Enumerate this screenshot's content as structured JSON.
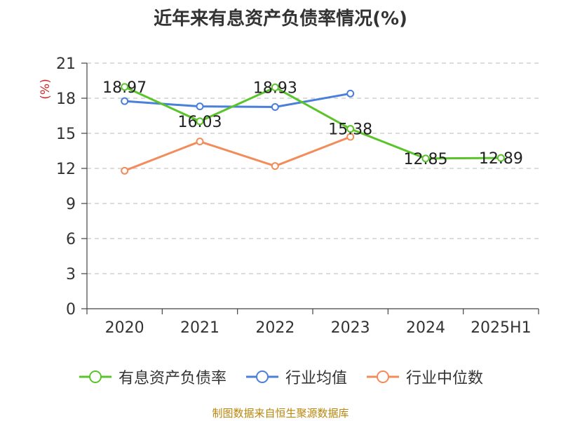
{
  "title": "近年来有息资产负债率情况(%)",
  "source": "制图数据来自恒生聚源数据库",
  "colors": {
    "series_1": "#5ac42a",
    "series_2": "#4a7fdb",
    "series_3": "#f28c5a",
    "grid": "#c8c8c8",
    "axis": "#444444",
    "unit": "#cc2a2a"
  },
  "chart_data": {
    "type": "line",
    "title": "近年来有息资产负债率情况(%)",
    "ylabel": "(%)",
    "xlabel": "",
    "categories": [
      "2020",
      "2021",
      "2022",
      "2023",
      "2024",
      "2025H1"
    ],
    "ylim": [
      0,
      21
    ],
    "yticks": [
      0,
      3,
      6,
      9,
      12,
      15,
      18,
      21
    ],
    "grid": true,
    "legend_position": "bottom",
    "series": [
      {
        "name": "有息资产负债率",
        "values": [
          18.97,
          16.03,
          18.93,
          15.38,
          12.85,
          12.89
        ],
        "labels": [
          "18.97",
          "16.03",
          "18.93",
          "15.38",
          "12.85",
          "12.89"
        ]
      },
      {
        "name": "行业均值",
        "values": [
          17.75,
          17.3,
          17.25,
          18.4,
          null,
          null
        ]
      },
      {
        "name": "行业中位数",
        "values": [
          11.8,
          14.3,
          12.2,
          14.7,
          null,
          null
        ]
      }
    ]
  }
}
